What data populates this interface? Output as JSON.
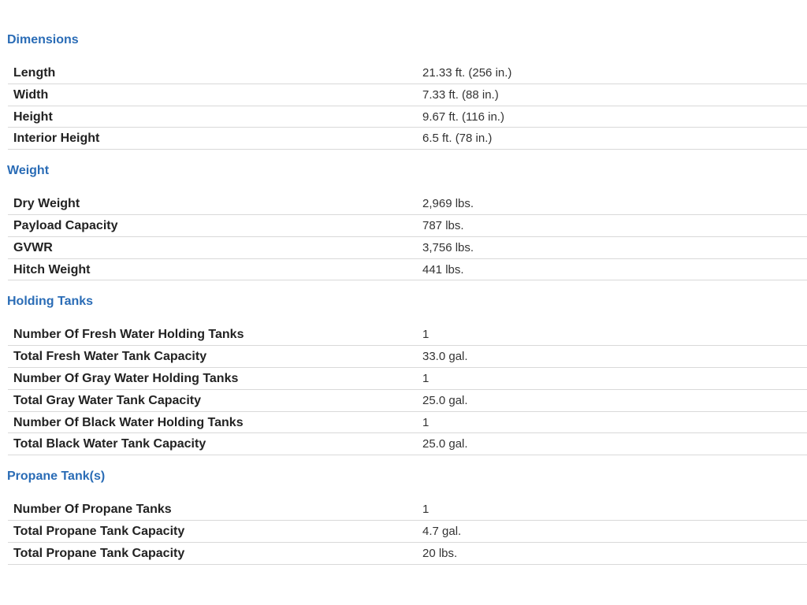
{
  "sections": [
    {
      "title": "Dimensions",
      "rows": [
        {
          "label": "Length",
          "value": "21.33 ft. (256 in.)"
        },
        {
          "label": "Width",
          "value": "7.33 ft. (88 in.)"
        },
        {
          "label": "Height",
          "value": "9.67 ft. (116 in.)"
        },
        {
          "label": "Interior Height",
          "value": "6.5 ft. (78 in.)"
        }
      ]
    },
    {
      "title": "Weight",
      "rows": [
        {
          "label": "Dry Weight",
          "value": "2,969 lbs."
        },
        {
          "label": "Payload Capacity",
          "value": "787 lbs."
        },
        {
          "label": "GVWR",
          "value": "3,756 lbs."
        },
        {
          "label": "Hitch Weight",
          "value": "441 lbs."
        }
      ]
    },
    {
      "title": "Holding Tanks",
      "rows": [
        {
          "label": "Number Of Fresh Water Holding Tanks",
          "value": "1"
        },
        {
          "label": "Total Fresh Water Tank Capacity",
          "value": "33.0 gal."
        },
        {
          "label": "Number Of Gray Water Holding Tanks",
          "value": "1"
        },
        {
          "label": "Total Gray Water Tank Capacity",
          "value": "25.0 gal."
        },
        {
          "label": "Number Of Black Water Holding Tanks",
          "value": "1"
        },
        {
          "label": "Total Black Water Tank Capacity",
          "value": "25.0 gal."
        }
      ]
    },
    {
      "title": "Propane Tank(s)",
      "rows": [
        {
          "label": "Number Of Propane Tanks",
          "value": "1"
        },
        {
          "label": "Total Propane Tank Capacity",
          "value": "4.7 gal."
        },
        {
          "label": "Total Propane Tank Capacity",
          "value": "20 lbs."
        }
      ]
    }
  ],
  "colors": {
    "section_title": "#2a6cb6",
    "divider": "#d9d9d9"
  }
}
